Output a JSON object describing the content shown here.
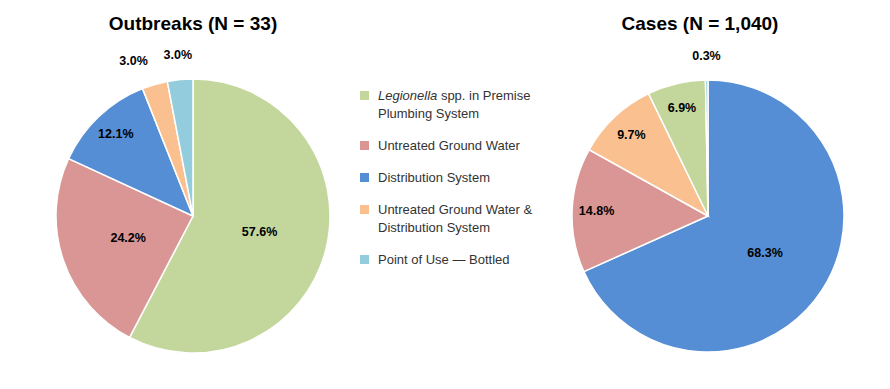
{
  "chart_data": [
    {
      "type": "pie",
      "title": "Outbreaks (N = 33)",
      "categories": [
        "Legionella spp. in Premise Plumbing System",
        "Untreated Ground Water",
        "Distribution System",
        "Untreated Ground Water & Distribution System",
        "Point of Use — Bottled"
      ],
      "values": [
        57.6,
        24.2,
        12.1,
        3.0,
        3.0
      ],
      "value_labels": [
        "57.6%",
        "24.2%",
        "12.1%",
        "3.0%",
        "3.0%"
      ],
      "colors": [
        "#c3d69b",
        "#d99694",
        "#558ed5",
        "#fac090",
        "#93cddd"
      ],
      "data_labels": true,
      "legend": "right"
    },
    {
      "type": "pie",
      "title": "Cases (N = 1,040)",
      "categories": [
        "Distribution System",
        "Untreated Ground Water",
        "Untreated Ground Water & Distribution System",
        "Legionella spp. in Premise Plumbing System",
        "Point of Use — Bottled"
      ],
      "values": [
        68.3,
        14.8,
        9.7,
        6.9,
        0.3
      ],
      "value_labels": [
        "68.3%",
        "14.8%",
        "9.7%",
        "6.9%",
        "0.3%"
      ],
      "colors": [
        "#558ed5",
        "#d99694",
        "#fac090",
        "#c3d69b",
        "#93cddd"
      ],
      "data_labels": true
    }
  ]
}
